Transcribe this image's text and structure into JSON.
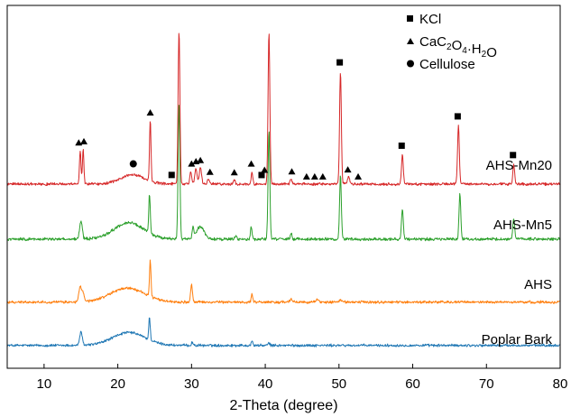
{
  "chart_data": {
    "type": "line",
    "title": "",
    "xlabel": "2-Theta (degree)",
    "ylabel": "",
    "xlim": [
      5,
      80
    ],
    "xticks": [
      10,
      20,
      30,
      40,
      50,
      60,
      70,
      80
    ],
    "grid": false,
    "legend": {
      "placement": "top-right",
      "entries": [
        {
          "marker": "square",
          "label": "KCl"
        },
        {
          "marker": "triangle",
          "label": "CaC2O4·H2O",
          "text_parts": [
            {
              "t": "CaC",
              "sub": false
            },
            {
              "t": "2",
              "sub": true
            },
            {
              "t": "O",
              "sub": false
            },
            {
              "t": "4",
              "sub": true
            },
            {
              "t": "·H",
              "sub": false
            },
            {
              "t": "2",
              "sub": true
            },
            {
              "t": "O",
              "sub": false
            }
          ]
        },
        {
          "marker": "circle",
          "label": "Cellulose"
        }
      ]
    },
    "series": [
      {
        "name": "Poplar Bark",
        "color": "#1f77b4",
        "noise": 0.045,
        "baseline": 0.05,
        "peaks": [
          [
            15.0,
            0.55,
            0.18
          ],
          [
            21.5,
            0.55,
            2.2
          ],
          [
            24.3,
            0.95,
            0.1
          ],
          [
            30.1,
            0.13,
            0.12
          ],
          [
            38.2,
            0.2,
            0.1
          ],
          [
            40.5,
            0.1,
            0.12
          ]
        ]
      },
      {
        "name": "AHS",
        "color": "#ff7f0e",
        "noise": 0.045,
        "baseline": 0.05,
        "peaks": [
          [
            14.9,
            0.65,
            0.18
          ],
          [
            15.3,
            0.35,
            0.15
          ],
          [
            21.3,
            0.6,
            2.3
          ],
          [
            24.4,
            1.55,
            0.1
          ],
          [
            30.0,
            0.75,
            0.12
          ],
          [
            38.2,
            0.35,
            0.1
          ],
          [
            43.5,
            0.12,
            0.15
          ],
          [
            47.0,
            0.1,
            0.2
          ],
          [
            50.2,
            0.08,
            0.2
          ]
        ]
      },
      {
        "name": "AHS-Mn5",
        "color": "#2ca02c",
        "noise": 0.05,
        "baseline": 0.08,
        "peaks": [
          [
            15.0,
            0.75,
            0.18
          ],
          [
            21.5,
            0.7,
            2.0
          ],
          [
            24.3,
            1.65,
            0.1
          ],
          [
            28.3,
            5.8,
            0.12
          ],
          [
            30.2,
            0.45,
            0.12
          ],
          [
            31.2,
            0.55,
            0.5
          ],
          [
            36.0,
            0.12,
            0.15
          ],
          [
            38.1,
            0.55,
            0.1
          ],
          [
            40.5,
            4.6,
            0.12
          ],
          [
            43.5,
            0.25,
            0.12
          ],
          [
            50.2,
            2.7,
            0.12
          ],
          [
            58.6,
            1.3,
            0.12
          ],
          [
            66.4,
            1.95,
            0.12
          ],
          [
            73.7,
            0.9,
            0.12
          ]
        ]
      },
      {
        "name": "AHS-Mn20",
        "color": "#d62728",
        "noise": 0.045,
        "baseline": 0.08,
        "peaks": [
          [
            14.9,
            1.45,
            0.1
          ],
          [
            15.3,
            1.5,
            0.1
          ],
          [
            22.0,
            0.4,
            1.6
          ],
          [
            24.4,
            2.6,
            0.1
          ],
          [
            28.3,
            6.5,
            0.12
          ],
          [
            29.9,
            0.55,
            0.12
          ],
          [
            30.6,
            0.65,
            0.15
          ],
          [
            31.2,
            0.7,
            0.15
          ],
          [
            32.3,
            0.2,
            0.15
          ],
          [
            35.8,
            0.18,
            0.12
          ],
          [
            38.2,
            0.55,
            0.1
          ],
          [
            40.5,
            6.5,
            0.12
          ],
          [
            43.5,
            0.22,
            0.12
          ],
          [
            50.2,
            4.8,
            0.12
          ],
          [
            51.3,
            0.3,
            0.15
          ],
          [
            58.6,
            1.25,
            0.12
          ],
          [
            66.2,
            2.5,
            0.12
          ],
          [
            73.7,
            0.85,
            0.12
          ]
        ]
      }
    ],
    "annotations": {
      "square": [
        27.3,
        39.5,
        50.1,
        58.5,
        66.1,
        73.6
      ],
      "triangle": [
        14.7,
        15.4,
        24.4,
        30.0,
        30.6,
        31.2,
        32.5,
        35.8,
        38.1,
        39.9,
        43.6,
        45.6,
        46.7,
        47.8,
        51.2,
        52.6
      ],
      "circle": [
        22.1
      ]
    }
  }
}
